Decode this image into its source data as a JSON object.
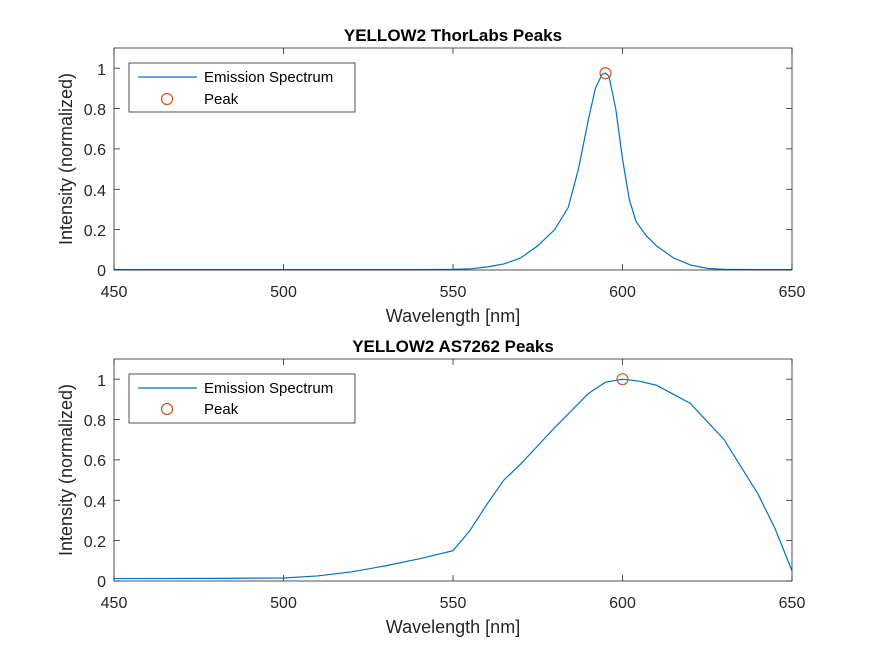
{
  "chart_data": [
    {
      "type": "line",
      "title": "YELLOW2 ThorLabs Peaks",
      "xlabel": "Wavelength [nm]",
      "ylabel": "Intensity (normalized)",
      "xlim": [
        450,
        650
      ],
      "ylim": [
        0,
        1.1
      ],
      "xticks": [
        "450",
        "500",
        "550",
        "600",
        "650"
      ],
      "yticks": [
        "0",
        "0.2",
        "0.4",
        "0.6",
        "0.8",
        "1"
      ],
      "legend_position": "top-left",
      "series": [
        {
          "name": "Emission Spectrum",
          "color": "#0072BD",
          "x": [
            450,
            500,
            540,
            550,
            555,
            560,
            565,
            570,
            575,
            580,
            584,
            587,
            590,
            592,
            594,
            595,
            596,
            598,
            600,
            602,
            604,
            607,
            610,
            615,
            620,
            625,
            630,
            640,
            650
          ],
          "y": [
            0.002,
            0.002,
            0.002,
            0.003,
            0.006,
            0.015,
            0.03,
            0.06,
            0.12,
            0.2,
            0.31,
            0.5,
            0.75,
            0.9,
            0.97,
            0.975,
            0.96,
            0.8,
            0.55,
            0.35,
            0.24,
            0.17,
            0.12,
            0.06,
            0.025,
            0.008,
            0.003,
            0.002,
            0.002
          ]
        },
        {
          "name": "Peak",
          "color": "#D95319",
          "marker": "circle",
          "x": [
            595
          ],
          "y": [
            0.975
          ]
        }
      ]
    },
    {
      "type": "line",
      "title": "YELLOW2 AS7262 Peaks",
      "xlabel": "Wavelength [nm]",
      "ylabel": "Intensity (normalized)",
      "xlim": [
        450,
        650
      ],
      "ylim": [
        0,
        1.1
      ],
      "xticks": [
        "450",
        "500",
        "550",
        "600",
        "650"
      ],
      "yticks": [
        "0",
        "0.2",
        "0.4",
        "0.6",
        "0.8",
        "1"
      ],
      "legend_position": "top-left",
      "series": [
        {
          "name": "Emission Spectrum",
          "color": "#0072BD",
          "x": [
            450,
            480,
            500,
            510,
            520,
            530,
            540,
            550,
            555,
            560,
            565,
            570,
            580,
            590,
            595,
            600,
            605,
            610,
            620,
            630,
            640,
            645,
            650
          ],
          "y": [
            0.012,
            0.013,
            0.015,
            0.025,
            0.045,
            0.075,
            0.11,
            0.15,
            0.25,
            0.38,
            0.5,
            0.58,
            0.76,
            0.93,
            0.985,
            1.0,
            0.99,
            0.97,
            0.88,
            0.7,
            0.43,
            0.26,
            0.05
          ]
        },
        {
          "name": "Peak",
          "color": "#D95319",
          "marker": "circle",
          "x": [
            600
          ],
          "y": [
            1.0
          ]
        }
      ]
    }
  ]
}
